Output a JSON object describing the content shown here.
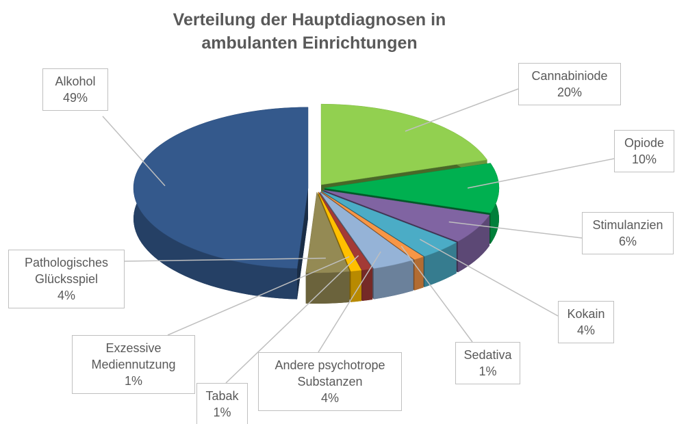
{
  "chart_data": {
    "type": "pie",
    "title": "Verteilung der Hauptdiagnosen in ambulanten Einrichtungen",
    "categories": [
      "Cannabiniode",
      "Opiode",
      "Stimulanzien",
      "Kokain",
      "Sedativa",
      "Andere psychotrope Substanzen",
      "Tabak",
      "Exzessive Mediennutzung",
      "Pathologisches Glücksspiel",
      "Alkohol"
    ],
    "values": [
      20,
      10,
      6,
      4,
      1,
      4,
      1,
      1,
      4,
      49
    ],
    "value_labels": [
      "20%",
      "10%",
      "6%",
      "4%",
      "1%",
      "4%",
      "1%",
      "1%",
      "4%",
      "49%"
    ],
    "colors": [
      "#92d050",
      "#00b050",
      "#8064a2",
      "#4bacc6",
      "#f79646",
      "#95b3d7",
      "#a33a36",
      "#ffc000",
      "#948a54",
      "#34598c"
    ]
  }
}
